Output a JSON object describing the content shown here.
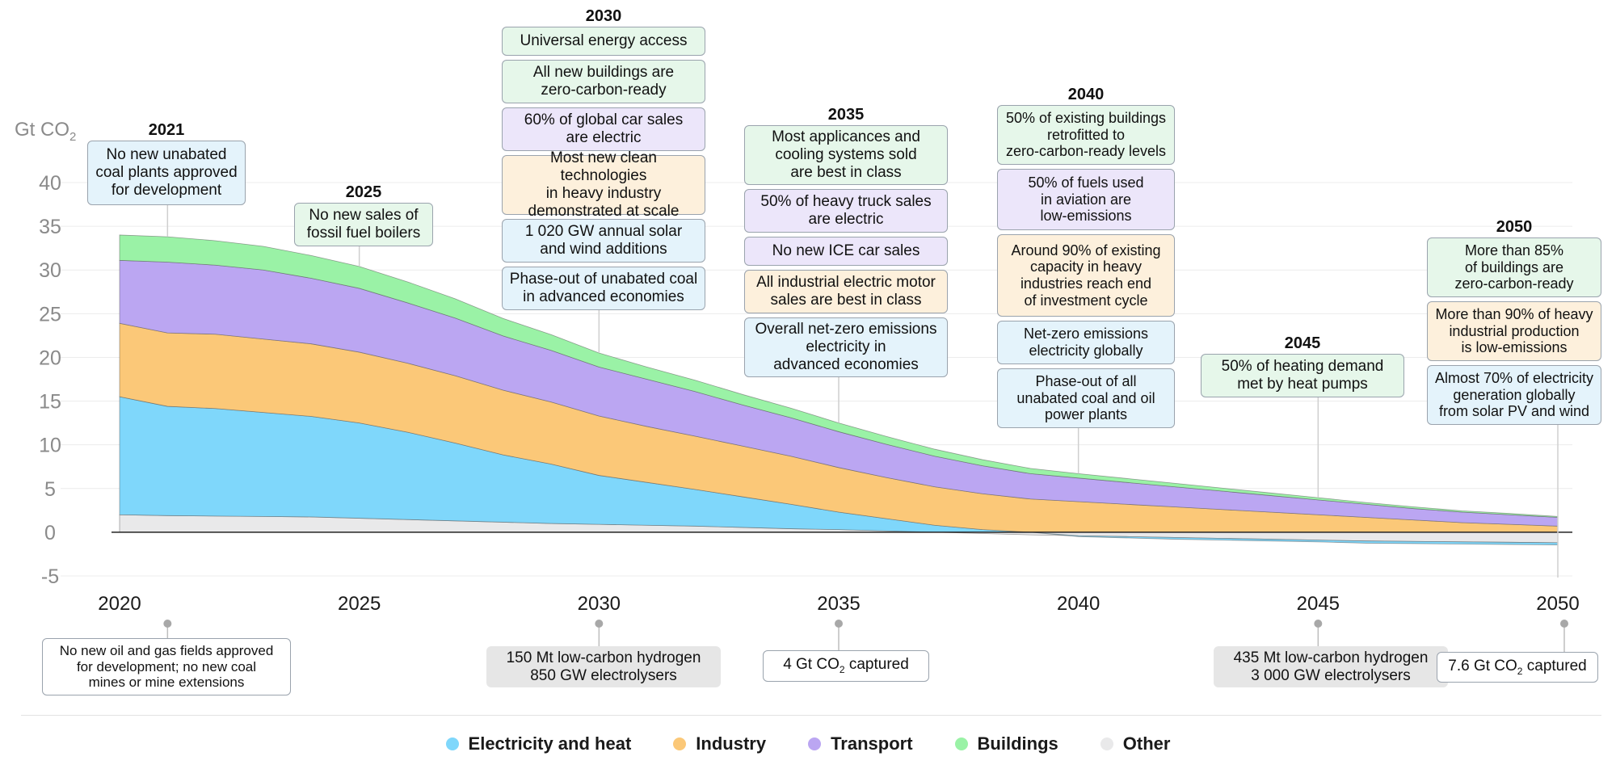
{
  "chart_data": {
    "type": "area",
    "stacked": true,
    "unit_label": "Gt CO",
    "unit_sub": "2",
    "x": [
      2020,
      2021,
      2022,
      2023,
      2024,
      2025,
      2026,
      2027,
      2028,
      2029,
      2030,
      2031,
      2032,
      2033,
      2034,
      2035,
      2036,
      2037,
      2038,
      2039,
      2040,
      2041,
      2042,
      2043,
      2044,
      2045,
      2046,
      2047,
      2048,
      2049,
      2050
    ],
    "x_ticks": [
      2020,
      2025,
      2030,
      2035,
      2040,
      2045,
      2050
    ],
    "y_ticks": [
      -5,
      0,
      5,
      10,
      15,
      20,
      25,
      30,
      35,
      40
    ],
    "ylim": [
      -5,
      40
    ],
    "grid": true,
    "legend_position": "bottom",
    "series": [
      {
        "name": "Other",
        "color": "#e9e9ea",
        "values": [
          2.0,
          1.9,
          1.85,
          1.8,
          1.75,
          1.6,
          1.45,
          1.3,
          1.15,
          1.0,
          0.9,
          0.8,
          0.7,
          0.55,
          0.4,
          0.3,
          0.15,
          0.0,
          -0.15,
          -0.3,
          -0.4,
          -0.5,
          -0.6,
          -0.7,
          -0.8,
          -0.9,
          -1.0,
          -1.05,
          -1.1,
          -1.15,
          -1.2
        ]
      },
      {
        "name": "Electricity and heat",
        "color": "#7fd7fb",
        "values": [
          13.5,
          12.5,
          12.3,
          11.9,
          11.5,
          10.9,
          10.0,
          8.9,
          7.7,
          6.8,
          5.6,
          4.9,
          4.2,
          3.5,
          2.8,
          2.0,
          1.4,
          0.8,
          0.3,
          0.0,
          -0.1,
          -0.15,
          -0.2,
          -0.2,
          -0.2,
          -0.2,
          -0.25,
          -0.25,
          -0.25,
          -0.25,
          -0.25
        ]
      },
      {
        "name": "Industry",
        "color": "#fbc878",
        "values": [
          8.4,
          8.4,
          8.5,
          8.4,
          8.3,
          8.1,
          7.9,
          7.7,
          7.4,
          7.1,
          6.8,
          6.4,
          6.1,
          5.8,
          5.5,
          5.1,
          4.7,
          4.4,
          4.1,
          3.8,
          3.5,
          3.2,
          2.9,
          2.6,
          2.3,
          2.0,
          1.7,
          1.4,
          1.1,
          0.9,
          0.7
        ]
      },
      {
        "name": "Transport",
        "color": "#bba6f2",
        "values": [
          7.2,
          8.1,
          7.9,
          7.9,
          7.5,
          7.3,
          6.9,
          6.6,
          6.2,
          5.9,
          5.6,
          5.4,
          5.1,
          4.7,
          4.4,
          4.1,
          3.8,
          3.5,
          3.2,
          2.9,
          2.7,
          2.5,
          2.3,
          2.1,
          1.9,
          1.7,
          1.5,
          1.3,
          1.2,
          1.1,
          1.0
        ]
      },
      {
        "name": "Buildings",
        "color": "#9af2a6",
        "values": [
          2.9,
          2.9,
          2.8,
          2.7,
          2.6,
          2.5,
          2.4,
          2.2,
          2.0,
          1.8,
          1.6,
          1.4,
          1.3,
          1.2,
          1.1,
          1.0,
          0.9,
          0.8,
          0.7,
          0.6,
          0.5,
          0.45,
          0.4,
          0.35,
          0.3,
          0.25,
          0.2,
          0.2,
          0.15,
          0.15,
          0.1
        ]
      }
    ]
  },
  "legend": [
    {
      "label": "Electricity and heat",
      "color": "#7fd7fb"
    },
    {
      "label": "Industry",
      "color": "#fbc878"
    },
    {
      "label": "Transport",
      "color": "#bba6f2"
    },
    {
      "label": "Buildings",
      "color": "#9af2a6"
    },
    {
      "label": "Other",
      "color": "#e9e9ea"
    }
  ],
  "milestones_top": [
    {
      "year_label": "2021",
      "anchor_year": 2021,
      "color": "blue",
      "boxes": [
        {
          "lines": [
            "No new unabated",
            "coal plants approved",
            "for development"
          ],
          "color": "blue"
        }
      ]
    },
    {
      "year_label": "2025",
      "anchor_year": 2025,
      "color": "green",
      "boxes": [
        {
          "lines": [
            "No new sales of",
            "fossil fuel boilers"
          ],
          "color": "green"
        }
      ]
    },
    {
      "year_label": "2030",
      "anchor_year": 2030,
      "boxes": [
        {
          "lines": [
            "Universal energy access"
          ],
          "color": "green"
        },
        {
          "lines": [
            "All new buildings are",
            "zero-carbon-ready"
          ],
          "color": "green"
        },
        {
          "lines": [
            "60% of global car sales",
            "are electric"
          ],
          "color": "purple"
        },
        {
          "lines": [
            "Most new clean technologies",
            "in heavy industry",
            "demonstrated at scale"
          ],
          "color": "orange"
        },
        {
          "lines": [
            "1 020 GW annual solar",
            "and wind additions"
          ],
          "color": "blue"
        },
        {
          "lines": [
            "Phase-out of unabated coal",
            "in advanced economies"
          ],
          "color": "blue"
        }
      ]
    },
    {
      "year_label": "2035",
      "anchor_year": 2035,
      "boxes": [
        {
          "lines": [
            "Most applicances and",
            "cooling systems sold",
            "are best in class"
          ],
          "color": "green"
        },
        {
          "lines": [
            "50% of heavy truck sales",
            "are electric"
          ],
          "color": "purple"
        },
        {
          "lines": [
            "No new ICE car sales"
          ],
          "color": "purple"
        },
        {
          "lines": [
            "All industrial electric motor",
            "sales are best in class"
          ],
          "color": "orange"
        },
        {
          "lines": [
            "Overall net-zero emissions",
            "electricity in",
            "advanced economies"
          ],
          "color": "blue"
        }
      ]
    },
    {
      "year_label": "2040",
      "anchor_year": 2040,
      "boxes": [
        {
          "lines": [
            "50% of existing buildings",
            "retrofitted to",
            "zero-carbon-ready levels"
          ],
          "color": "green"
        },
        {
          "lines": [
            "50% of fuels used",
            "in aviation are",
            "low-emissions"
          ],
          "color": "purple"
        },
        {
          "lines": [
            "Around 90% of existing",
            "capacity in heavy",
            "industries reach end",
            "of investment cycle"
          ],
          "color": "orange"
        },
        {
          "lines": [
            "Net-zero emissions",
            "electricity globally"
          ],
          "color": "blue"
        },
        {
          "lines": [
            "Phase-out of all",
            "unabated coal and oil",
            "power plants"
          ],
          "color": "blue"
        }
      ]
    },
    {
      "year_label": "2045",
      "anchor_year": 2045,
      "boxes": [
        {
          "lines": [
            "50% of heating demand",
            "met by heat pumps"
          ],
          "color": "green"
        }
      ]
    },
    {
      "year_label": "2050",
      "anchor_year": 2050,
      "boxes": [
        {
          "lines": [
            "More than 85%",
            "of buildings are",
            "zero-carbon-ready"
          ],
          "color": "green"
        },
        {
          "lines": [
            "More than 90% of heavy",
            "industrial production",
            "is low-emissions"
          ],
          "color": "orange"
        },
        {
          "lines": [
            "Almost 70% of electricity",
            "generation globally",
            "from solar PV and wind"
          ],
          "color": "blue"
        }
      ]
    }
  ],
  "milestones_bottom": [
    {
      "anchor_year": 2021,
      "color": "white",
      "lines": [
        "No new oil and gas fields approved",
        "for development; no new coal",
        "mines or mine extensions"
      ]
    },
    {
      "anchor_year": 2030,
      "color": "gray",
      "lines": [
        "150 Mt low-carbon hydrogen",
        "850 GW electrolysers"
      ]
    },
    {
      "anchor_year": 2035,
      "color": "white",
      "lines": [
        "4 Gt CO",
        "2",
        " captured"
      ],
      "subscript": true
    },
    {
      "anchor_year": 2045,
      "color": "gray",
      "lines": [
        "435 Mt low-carbon hydrogen",
        "3 000 GW electrolysers"
      ]
    },
    {
      "anchor_year": 2050,
      "color": "white",
      "lines": [
        "7.6 Gt CO",
        "2",
        " captured"
      ],
      "subscript": true
    }
  ]
}
